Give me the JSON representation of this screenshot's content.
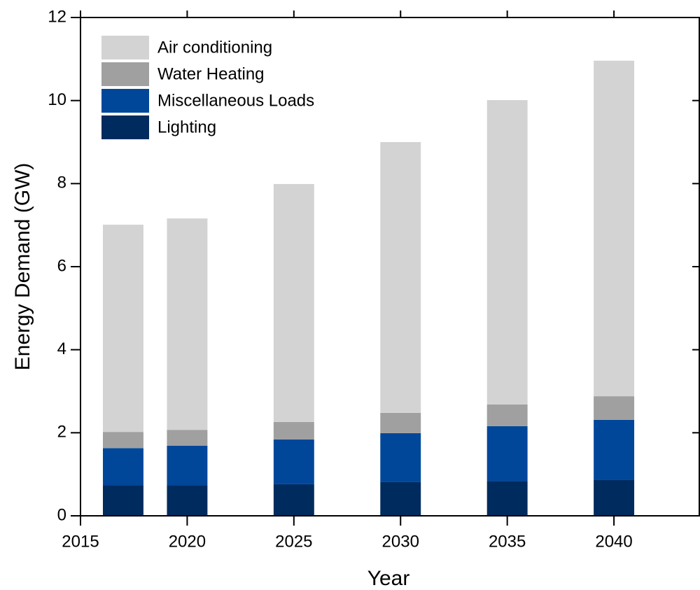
{
  "chart_data": {
    "type": "stacked_bar",
    "xlabel": "Year",
    "ylabel": "Energy Demand (GW)",
    "x": [
      2017,
      2020,
      2025,
      2030,
      2035,
      2040
    ],
    "series": [
      {
        "name": "Lighting",
        "color": "#002b5e",
        "values": [
          0.74,
          0.74,
          0.76,
          0.81,
          0.84,
          0.86
        ]
      },
      {
        "name": "Miscellaneous Loads",
        "color": "#00479a",
        "values": [
          0.89,
          0.95,
          1.08,
          1.18,
          1.32,
          1.45
        ]
      },
      {
        "name": "Water Heating",
        "color": "#a0a0a0",
        "values": [
          0.39,
          0.38,
          0.42,
          0.49,
          0.52,
          0.57
        ]
      },
      {
        "name": "Air conditioning",
        "color": "#d3d3d3",
        "values": [
          4.99,
          5.09,
          5.73,
          6.52,
          7.33,
          8.08
        ]
      }
    ],
    "xlim": [
      2015,
      2044
    ],
    "xticks": [
      2015,
      2020,
      2025,
      2030,
      2035,
      2040
    ],
    "ylim": [
      0,
      12
    ],
    "yticks": [
      0,
      2,
      4,
      6,
      8,
      10,
      12
    ],
    "legend": "upper left"
  }
}
